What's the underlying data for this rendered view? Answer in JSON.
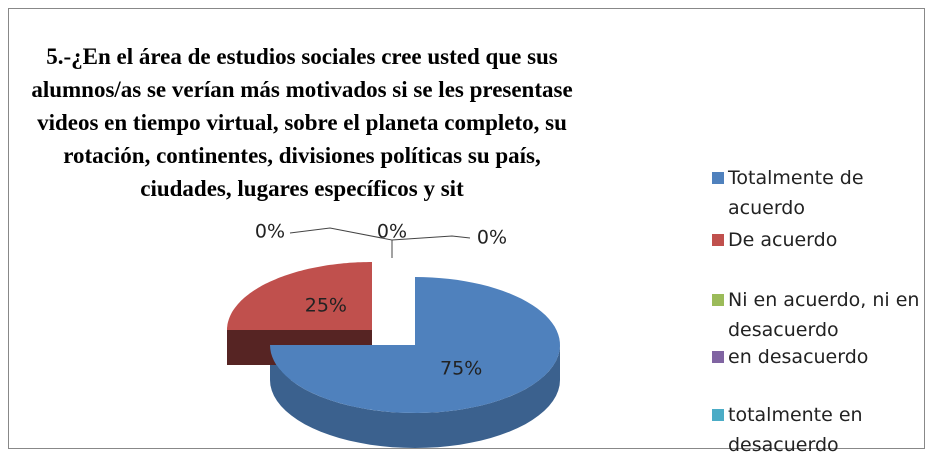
{
  "chart_data": {
    "type": "pie3d",
    "title": "5.-¿En el área de estudios sociales cree usted que sus alumnos/as se verían más motivados si se les presentase videos en tiempo virtual, sobre el planeta completo, su rotación, continentes, divisiones políticas su país, ciudades, lugares específicos y sit",
    "categories": [
      "Totalmente de acuerdo",
      "De acuerdo",
      "Ni en acuerdo, ni en desacuerdo",
      "en desacuerdo",
      "totalmente en desacuerdo"
    ],
    "values": [
      75,
      25,
      0,
      0,
      0
    ],
    "value_labels": [
      "75%",
      "25%",
      "0%",
      "0%",
      "0%"
    ],
    "colors": [
      "#4f81bd",
      "#c0504d",
      "#9bbb59",
      "#8064a2",
      "#4bacc6"
    ],
    "explode": [
      0,
      1,
      0,
      0,
      0
    ],
    "legend": "right"
  }
}
